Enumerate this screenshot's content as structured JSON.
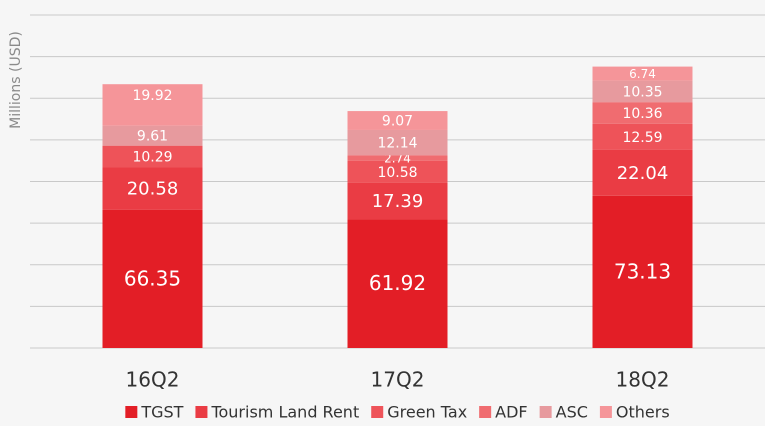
{
  "chart_data": {
    "type": "stacked_bar",
    "y_label": "Millions (USD)",
    "categories": [
      "16Q2",
      "17Q2",
      "18Q2"
    ],
    "series": [
      {
        "name": "TGST",
        "color": "#e31e26",
        "values": [
          66.35,
          61.92,
          73.13
        ]
      },
      {
        "name": "Tourism Land Rent",
        "color": "#ea3c44",
        "values": [
          20.58,
          17.39,
          22.04
        ]
      },
      {
        "name": "Green Tax",
        "color": "#ee5359",
        "values": [
          10.29,
          10.58,
          12.59
        ]
      },
      {
        "name": "ADF",
        "color": "#f06c70",
        "values": [
          null,
          2.74,
          10.36
        ]
      },
      {
        "name": "ASC",
        "color": "#e79a9e",
        "values": [
          9.61,
          12.14,
          10.35
        ]
      },
      {
        "name": "Others",
        "color": "#f59599",
        "values": [
          19.92,
          9.07,
          6.74
        ]
      }
    ],
    "ylim": [
      0,
      160
    ],
    "yticks": [
      0,
      20,
      40,
      60,
      80,
      100,
      120,
      140,
      160
    ],
    "grid": true,
    "legend": "bottom"
  }
}
